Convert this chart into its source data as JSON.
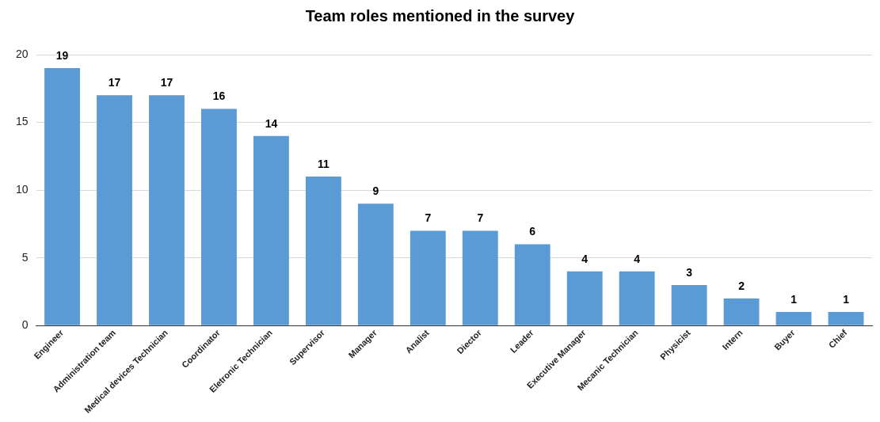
{
  "chart_data": {
    "type": "bar",
    "title": "Team roles mentioned in the survey",
    "categories": [
      "Engineer",
      "Administration team",
      "Medical devices Technician",
      "Coordinator",
      "Eletronic Technician",
      "Supervisor",
      "Manager",
      "Analist",
      "Diector",
      "Leader",
      "Executive Manager",
      "Mecanic Technician",
      "Physicist",
      "Intern",
      "Buyer",
      "Chief"
    ],
    "values": [
      19,
      17,
      17,
      16,
      14,
      11,
      9,
      7,
      7,
      6,
      4,
      4,
      3,
      2,
      1,
      1
    ],
    "color": "#5b9bd5",
    "ylim": [
      0,
      20
    ],
    "yticks": [
      0,
      5,
      10,
      15,
      20
    ],
    "grid": "y",
    "data_labels": true,
    "legend": false
  }
}
